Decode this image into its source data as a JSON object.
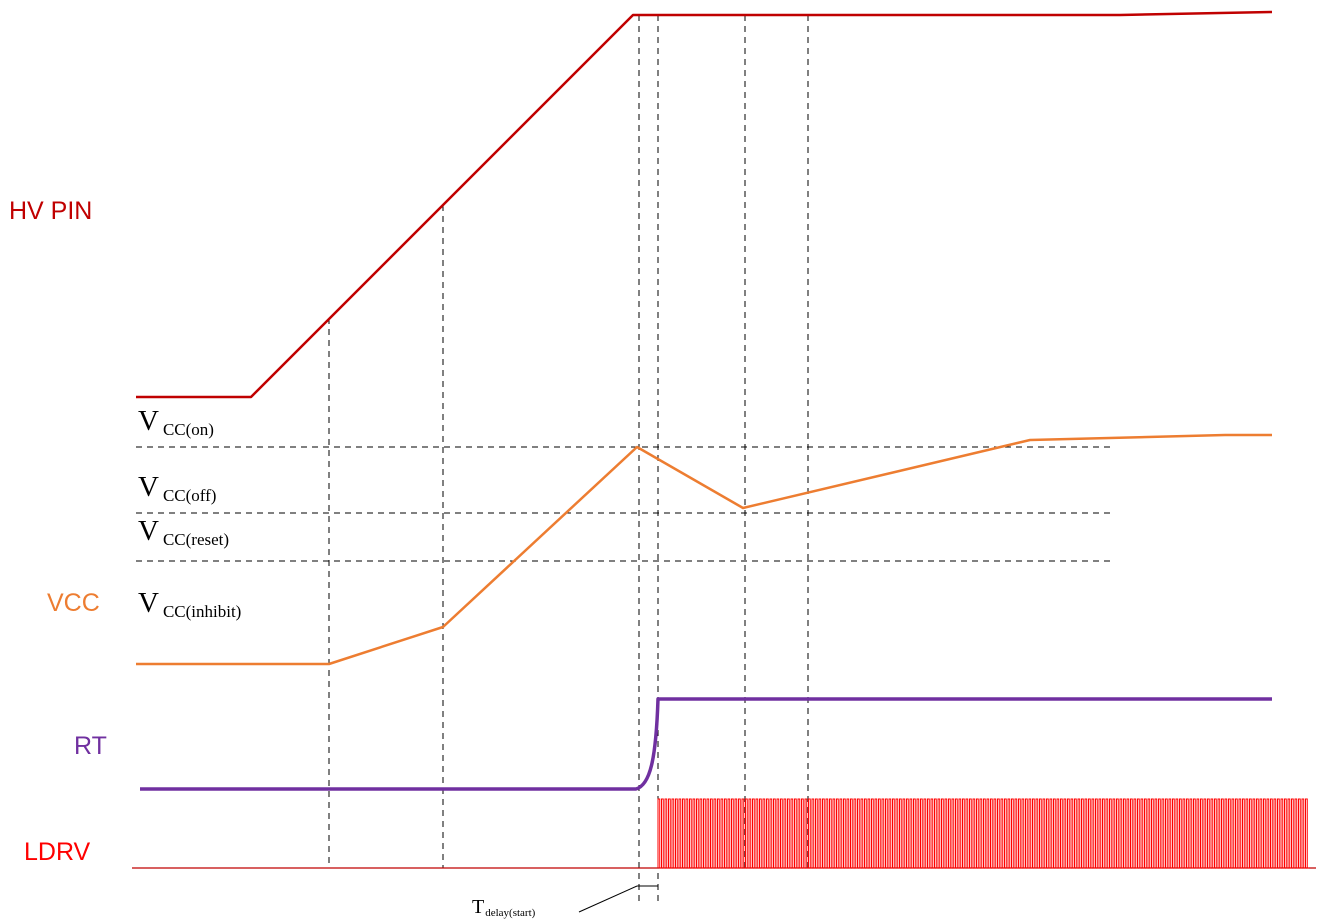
{
  "signals": {
    "hv_pin": {
      "label": "HV PIN",
      "color": "#c00000"
    },
    "vcc": {
      "label": "VCC",
      "color": "#ed7d31"
    },
    "rt": {
      "label": "RT",
      "color": "#7030a0"
    },
    "ldrv": {
      "label": "LDRV",
      "color": "#ff0000"
    }
  },
  "levels": {
    "vcc_on": {
      "main": "V",
      "sub": "CC(on)"
    },
    "vcc_off": {
      "main": "V",
      "sub": "CC(off)"
    },
    "vcc_reset": {
      "main": "V",
      "sub": "CC(reset)"
    },
    "vcc_inhibit": {
      "main": "V",
      "sub": "CC(inhibit)"
    }
  },
  "timing": {
    "delay_start": {
      "main": "T",
      "sub": "delay(start)"
    }
  },
  "colors": {
    "guide": "#000000",
    "ldrv_baseline": "#c00000"
  }
}
